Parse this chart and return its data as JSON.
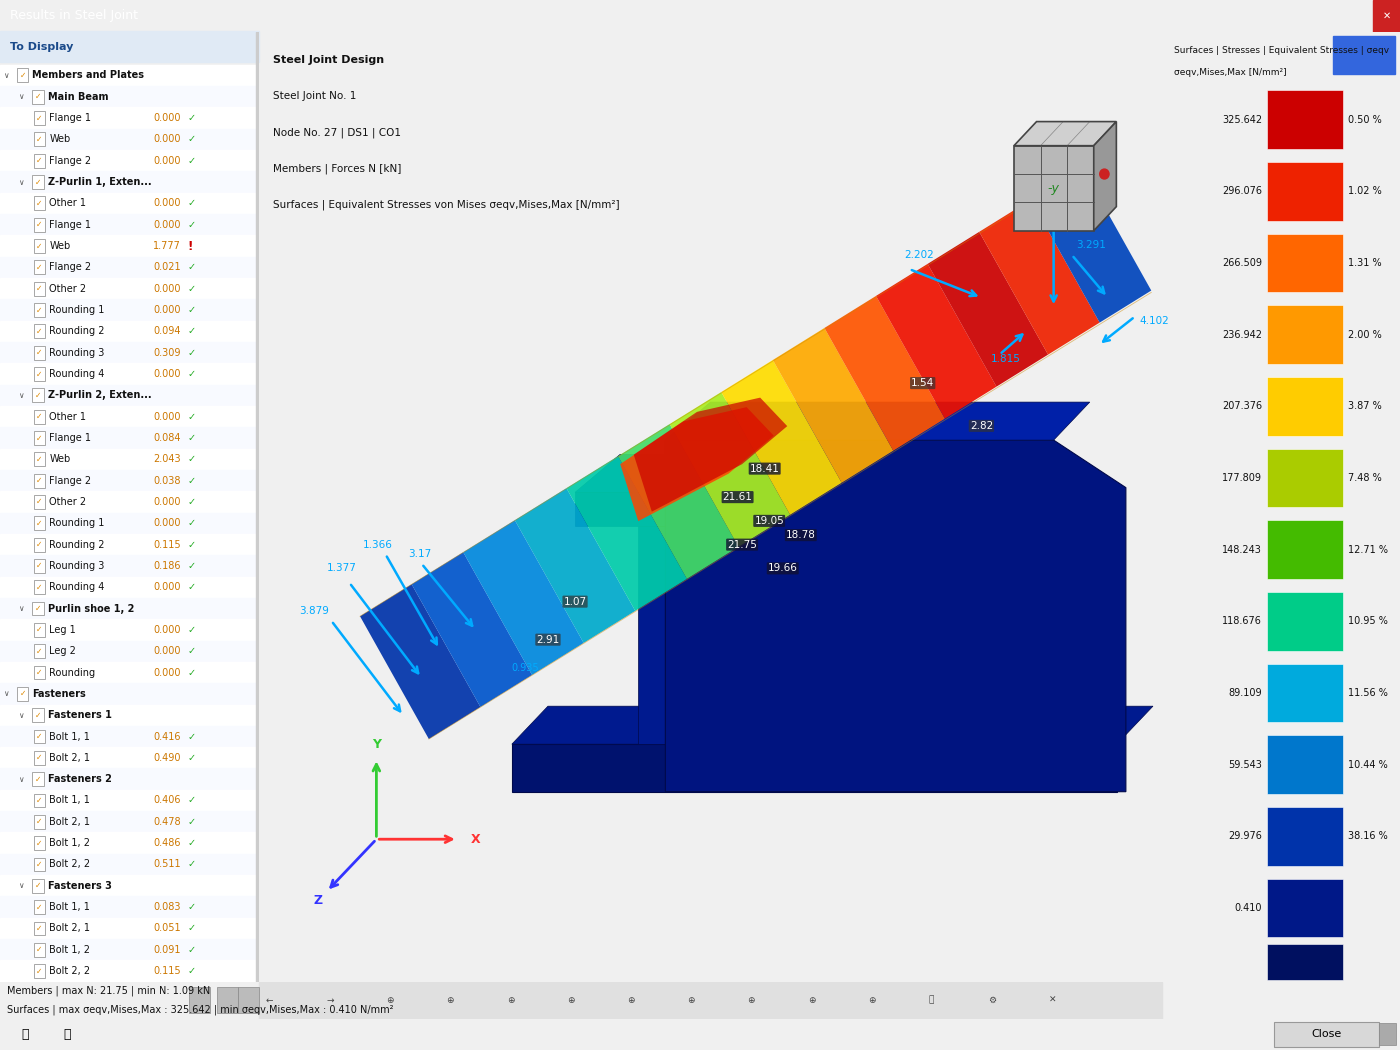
{
  "title": "Results in Steel Joint",
  "window_bg": "#f0f0f0",
  "panel_title": "To Display",
  "tree_items": [
    {
      "level": 0,
      "text": "Members and Plates",
      "checked": true,
      "value": null,
      "indicator": "green",
      "has_arrow": true
    },
    {
      "level": 1,
      "text": "Main Beam",
      "checked": true,
      "value": null,
      "indicator": null,
      "has_arrow": true
    },
    {
      "level": 2,
      "text": "Flange 1",
      "checked": true,
      "value": "0.000",
      "indicator": "green",
      "has_arrow": false
    },
    {
      "level": 2,
      "text": "Web",
      "checked": true,
      "value": "0.000",
      "indicator": "green",
      "has_arrow": false
    },
    {
      "level": 2,
      "text": "Flange 2",
      "checked": true,
      "value": "0.000",
      "indicator": "green",
      "has_arrow": false
    },
    {
      "level": 1,
      "text": "Z-Purlin 1, Exten...",
      "checked": true,
      "value": null,
      "indicator": null,
      "has_arrow": true
    },
    {
      "level": 2,
      "text": "Other 1",
      "checked": true,
      "value": "0.000",
      "indicator": "green",
      "has_arrow": false
    },
    {
      "level": 2,
      "text": "Flange 1",
      "checked": true,
      "value": "0.000",
      "indicator": "green",
      "has_arrow": false
    },
    {
      "level": 2,
      "text": "Web",
      "checked": true,
      "value": "1.777",
      "indicator": "red",
      "has_arrow": false
    },
    {
      "level": 2,
      "text": "Flange 2",
      "checked": true,
      "value": "0.021",
      "indicator": "green",
      "has_arrow": false
    },
    {
      "level": 2,
      "text": "Other 2",
      "checked": true,
      "value": "0.000",
      "indicator": "green",
      "has_arrow": false
    },
    {
      "level": 2,
      "text": "Rounding 1",
      "checked": true,
      "value": "0.000",
      "indicator": "green",
      "has_arrow": false
    },
    {
      "level": 2,
      "text": "Rounding 2",
      "checked": true,
      "value": "0.094",
      "indicator": "green",
      "has_arrow": false
    },
    {
      "level": 2,
      "text": "Rounding 3",
      "checked": true,
      "value": "0.309",
      "indicator": "green",
      "has_arrow": false
    },
    {
      "level": 2,
      "text": "Rounding 4",
      "checked": true,
      "value": "0.000",
      "indicator": "green",
      "has_arrow": false
    },
    {
      "level": 1,
      "text": "Z-Purlin 2, Exten...",
      "checked": true,
      "value": null,
      "indicator": null,
      "has_arrow": true
    },
    {
      "level": 2,
      "text": "Other 1",
      "checked": true,
      "value": "0.000",
      "indicator": "green",
      "has_arrow": false
    },
    {
      "level": 2,
      "text": "Flange 1",
      "checked": true,
      "value": "0.084",
      "indicator": "green",
      "has_arrow": false
    },
    {
      "level": 2,
      "text": "Web",
      "checked": true,
      "value": "2.043",
      "indicator": "green",
      "has_arrow": false
    },
    {
      "level": 2,
      "text": "Flange 2",
      "checked": true,
      "value": "0.038",
      "indicator": "green",
      "has_arrow": false
    },
    {
      "level": 2,
      "text": "Other 2",
      "checked": true,
      "value": "0.000",
      "indicator": "green",
      "has_arrow": false
    },
    {
      "level": 2,
      "text": "Rounding 1",
      "checked": true,
      "value": "0.000",
      "indicator": "green",
      "has_arrow": false
    },
    {
      "level": 2,
      "text": "Rounding 2",
      "checked": true,
      "value": "0.115",
      "indicator": "green",
      "has_arrow": false
    },
    {
      "level": 2,
      "text": "Rounding 3",
      "checked": true,
      "value": "0.186",
      "indicator": "green",
      "has_arrow": false
    },
    {
      "level": 2,
      "text": "Rounding 4",
      "checked": true,
      "value": "0.000",
      "indicator": "green",
      "has_arrow": false
    },
    {
      "level": 1,
      "text": "Purlin shoe 1, 2",
      "checked": true,
      "value": null,
      "indicator": null,
      "has_arrow": true
    },
    {
      "level": 2,
      "text": "Leg 1",
      "checked": true,
      "value": "0.000",
      "indicator": "green",
      "has_arrow": false
    },
    {
      "level": 2,
      "text": "Leg 2",
      "checked": true,
      "value": "0.000",
      "indicator": "green",
      "has_arrow": false
    },
    {
      "level": 2,
      "text": "Rounding",
      "checked": true,
      "value": "0.000",
      "indicator": "green",
      "has_arrow": false
    },
    {
      "level": 0,
      "text": "Fasteners",
      "checked": true,
      "value": null,
      "indicator": null,
      "has_arrow": true
    },
    {
      "level": 1,
      "text": "Fasteners 1",
      "checked": true,
      "value": null,
      "indicator": null,
      "has_arrow": true
    },
    {
      "level": 2,
      "text": "Bolt 1, 1",
      "checked": true,
      "value": "0.416",
      "indicator": "green",
      "has_arrow": false
    },
    {
      "level": 2,
      "text": "Bolt 2, 1",
      "checked": true,
      "value": "0.490",
      "indicator": "green",
      "has_arrow": false
    },
    {
      "level": 1,
      "text": "Fasteners 2",
      "checked": true,
      "value": null,
      "indicator": null,
      "has_arrow": true
    },
    {
      "level": 2,
      "text": "Bolt 1, 1",
      "checked": true,
      "value": "0.406",
      "indicator": "green",
      "has_arrow": false
    },
    {
      "level": 2,
      "text": "Bolt 2, 1",
      "checked": true,
      "value": "0.478",
      "indicator": "green",
      "has_arrow": false
    },
    {
      "level": 2,
      "text": "Bolt 1, 2",
      "checked": true,
      "value": "0.486",
      "indicator": "green",
      "has_arrow": false
    },
    {
      "level": 2,
      "text": "Bolt 2, 2",
      "checked": true,
      "value": "0.511",
      "indicator": "green",
      "has_arrow": false
    },
    {
      "level": 1,
      "text": "Fasteners 3",
      "checked": true,
      "value": null,
      "indicator": null,
      "has_arrow": true
    },
    {
      "level": 2,
      "text": "Bolt 1, 1",
      "checked": true,
      "value": "0.083",
      "indicator": "green",
      "has_arrow": false
    },
    {
      "level": 2,
      "text": "Bolt 2, 1",
      "checked": true,
      "value": "0.051",
      "indicator": "green",
      "has_arrow": false
    },
    {
      "level": 2,
      "text": "Bolt 1, 2",
      "checked": true,
      "value": "0.091",
      "indicator": "green",
      "has_arrow": false
    },
    {
      "level": 2,
      "text": "Bolt 2, 2",
      "checked": true,
      "value": "0.115",
      "indicator": "green",
      "has_arrow": false
    }
  ],
  "info_lines": [
    "Steel Joint Design",
    "Steel Joint No. 1",
    "Node No. 27 | DS1 | CO1",
    "Members | Forces N [kN]",
    "Surfaces | Equivalent Stresses von Mises σeqv,Mises,Max [N/mm²]"
  ],
  "colorbar_title_line1": "Surfaces | Stresses | Equivalent Stresses | σeqv",
  "colorbar_title_line2": "σeqv,Mises,Max [N/mm²]",
  "colorbar_values": [
    325.642,
    296.076,
    266.509,
    236.942,
    207.376,
    177.809,
    148.243,
    118.676,
    89.109,
    59.543,
    29.976,
    0.41
  ],
  "colorbar_percentages": [
    "0.50 %",
    "1.02 %",
    "1.31 %",
    "2.00 %",
    "3.87 %",
    "7.48 %",
    "12.71 %",
    "10.95 %",
    "11.56 %",
    "10.44 %",
    "38.16 %",
    ""
  ],
  "colorbar_colors": [
    "#cc0000",
    "#ee2200",
    "#ff6600",
    "#ff9900",
    "#ffcc00",
    "#aacc00",
    "#44bb00",
    "#00cc88",
    "#00aadd",
    "#0077cc",
    "#0033aa",
    "#001888"
  ],
  "status_bar_text1": "Members | max N: 21.75 | min N: 1.09 kN",
  "status_bar_text2": "Surfaces | max σeqv,Mises,Max : 325.642 | min σeqv,Mises,Max : 0.410 N/mm²",
  "annotation_color": "#00aaff",
  "axis_color_x": "#ff3333",
  "axis_color_y": "#33cc33",
  "axis_color_z": "#3333ff",
  "main_view_bg": "#ffffff"
}
